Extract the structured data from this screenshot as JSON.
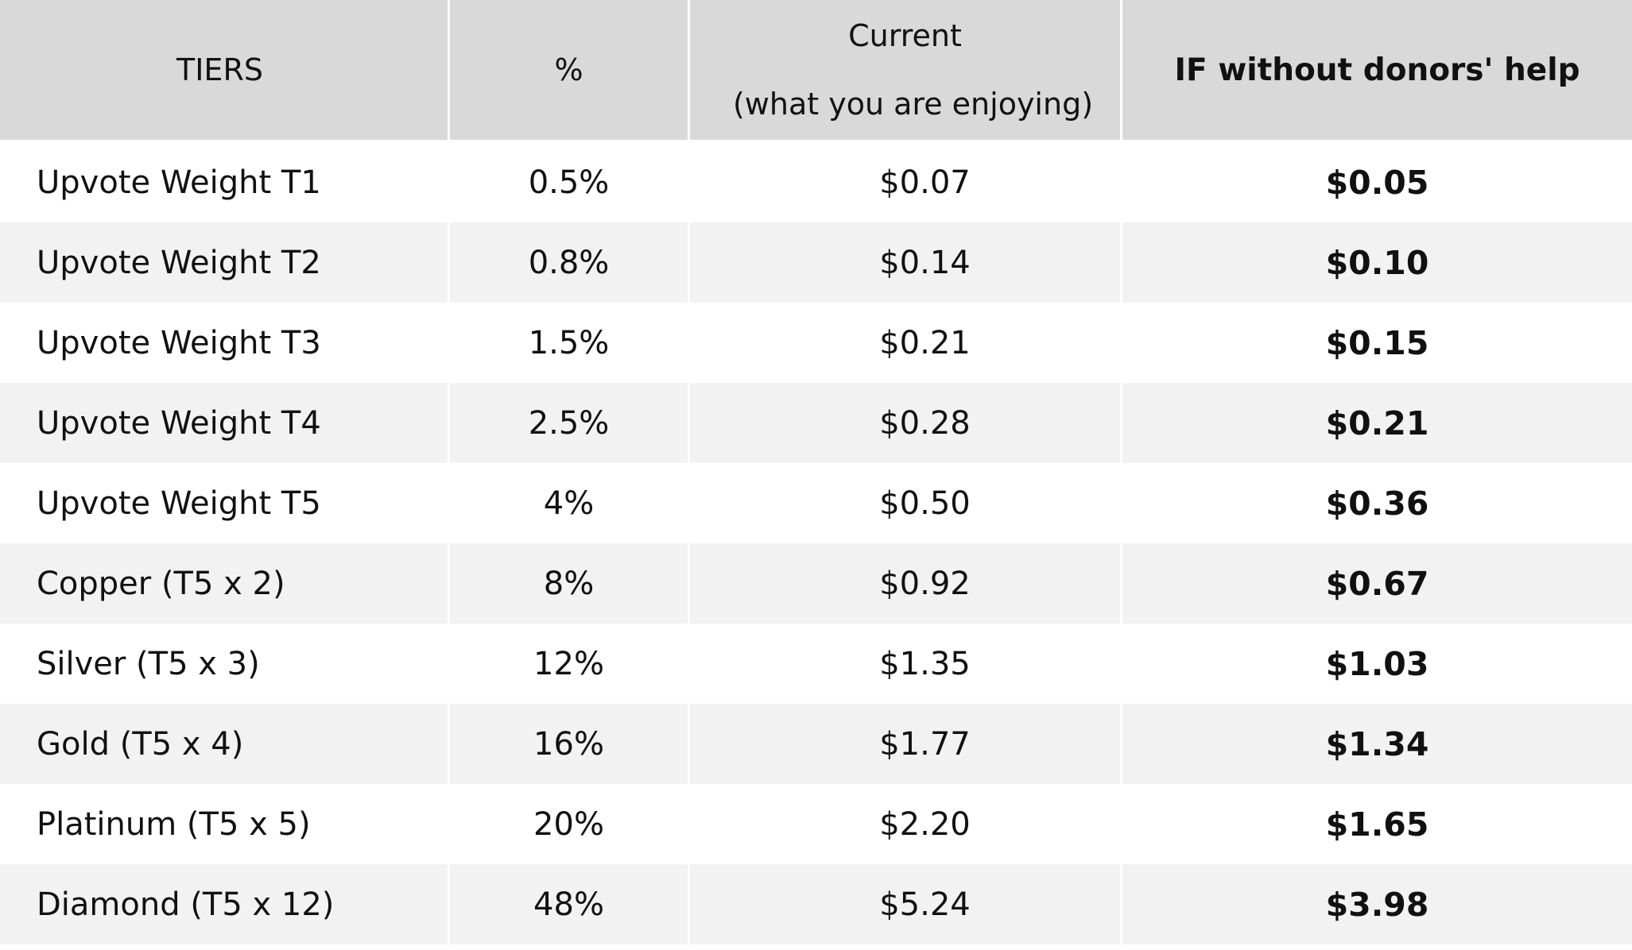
{
  "table": {
    "headers": {
      "tiers": "TIERS",
      "percent": "%",
      "current_line1": "Current",
      "current_line2": "(what you are enjoying)",
      "without": "IF without donors' help"
    },
    "rows": [
      {
        "tier": "Upvote Weight T1",
        "percent": "0.5%",
        "current": "$0.07",
        "without": "$0.05"
      },
      {
        "tier": "Upvote Weight T2",
        "percent": "0.8%",
        "current": "$0.14",
        "without": "$0.10"
      },
      {
        "tier": "Upvote Weight T3",
        "percent": "1.5%",
        "current": "$0.21",
        "without": "$0.15"
      },
      {
        "tier": "Upvote Weight T4",
        "percent": "2.5%",
        "current": "$0.28",
        "without": "$0.21"
      },
      {
        "tier": "Upvote Weight T5",
        "percent": "4%",
        "current": "$0.50",
        "without": "$0.36"
      },
      {
        "tier": "Copper (T5 x 2)",
        "percent": "8%",
        "current": "$0.92",
        "without": "$0.67"
      },
      {
        "tier": "Silver (T5 x 3)",
        "percent": "12%",
        "current": "$1.35",
        "without": "$1.03"
      },
      {
        "tier": "Gold (T5 x 4)",
        "percent": "16%",
        "current": "$1.77",
        "without": "$1.34"
      },
      {
        "tier": "Platinum (T5 x 5)",
        "percent": "20%",
        "current": "$2.20",
        "without": "$1.65"
      },
      {
        "tier": "Diamond (T5 x 12)",
        "percent": "48%",
        "current": "$5.24",
        "without": "$3.98"
      }
    ]
  },
  "colors": {
    "header_bg": "#d9d9d9",
    "row_alt_bg": "#f2f2f2",
    "row_bg": "#ffffff",
    "text": "#111111"
  }
}
